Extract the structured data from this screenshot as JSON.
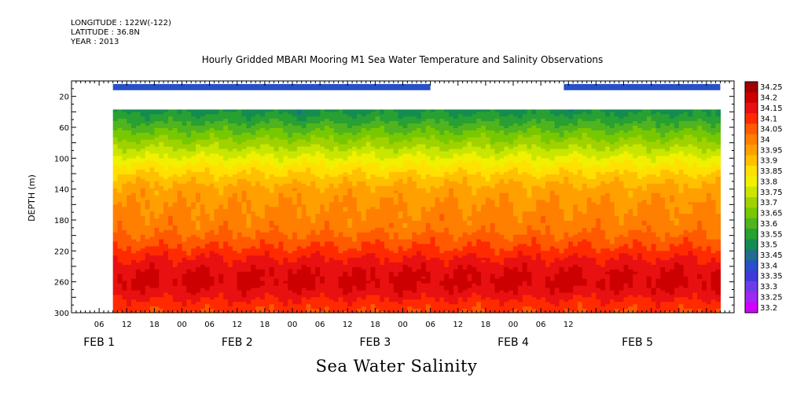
{
  "meta": {
    "longitude": "LONGITUDE : 122W(-122)",
    "latitude": "LATITUDE : 36.8N",
    "year": "YEAR : 2013"
  },
  "caption": "Sea Water Salinity",
  "chart_data": {
    "type": "heatmap",
    "title": "Hourly Gridded MBARI Mooring M1 Sea Water Temperature and Salinity Observations",
    "xlabel": "",
    "ylabel": "DEPTH (m)",
    "y_inverted": true,
    "ylim": [
      300,
      0
    ],
    "y_ticks": [
      20,
      60,
      100,
      140,
      180,
      220,
      260,
      300
    ],
    "x_range_hours": [
      0,
      144
    ],
    "x_hour_ticks": [
      {
        "h": 6,
        "label": "06"
      },
      {
        "h": 12,
        "label": "12"
      },
      {
        "h": 18,
        "label": "18"
      },
      {
        "h": 24,
        "label": "00"
      },
      {
        "h": 30,
        "label": "06"
      },
      {
        "h": 36,
        "label": "12"
      },
      {
        "h": 42,
        "label": "18"
      },
      {
        "h": 48,
        "label": "00"
      },
      {
        "h": 54,
        "label": "06"
      },
      {
        "h": 60,
        "label": "12"
      },
      {
        "h": 66,
        "label": "18"
      },
      {
        "h": 72,
        "label": "00"
      },
      {
        "h": 78,
        "label": "06"
      },
      {
        "h": 84,
        "label": "12"
      },
      {
        "h": 90,
        "label": "18"
      },
      {
        "h": 96,
        "label": "00"
      },
      {
        "h": 102,
        "label": "06"
      },
      {
        "h": 108,
        "label": "12"
      }
    ],
    "x_day_labels": [
      {
        "h": 6,
        "label": "FEB  1"
      },
      {
        "h": 36,
        "label": "FEB  2"
      },
      {
        "h": 66,
        "label": "FEB  3"
      },
      {
        "h": 96,
        "label": "FEB  4"
      },
      {
        "h": 123,
        "label": "FEB  5"
      }
    ],
    "data_start_hour": 9,
    "data_end_hour": 141,
    "top_depth": 37,
    "surface_band": {
      "depth_top": 4,
      "depth_bottom": 12,
      "value": 33.4,
      "segments": [
        [
          9,
          78
        ],
        [
          107,
          141
        ]
      ]
    },
    "depth_profile": [
      {
        "depth": 37,
        "value": 33.53
      },
      {
        "depth": 50,
        "value": 33.58
      },
      {
        "depth": 65,
        "value": 33.65
      },
      {
        "depth": 80,
        "value": 33.72
      },
      {
        "depth": 95,
        "value": 33.79
      },
      {
        "depth": 110,
        "value": 33.86
      },
      {
        "depth": 125,
        "value": 33.92
      },
      {
        "depth": 140,
        "value": 33.97
      },
      {
        "depth": 160,
        "value": 34.0
      },
      {
        "depth": 190,
        "value": 34.03
      },
      {
        "depth": 215,
        "value": 34.1
      },
      {
        "depth": 232,
        "value": 34.16
      },
      {
        "depth": 248,
        "value": 34.2
      },
      {
        "depth": 262,
        "value": 34.21
      },
      {
        "depth": 275,
        "value": 34.18
      },
      {
        "depth": 288,
        "value": 34.13
      },
      {
        "depth": 300,
        "value": 34.1
      }
    ],
    "colorbar": {
      "levels": [
        34.25,
        34.2,
        34.15,
        34.1,
        34.05,
        34,
        33.95,
        33.9,
        33.85,
        33.8,
        33.75,
        33.7,
        33.65,
        33.6,
        33.55,
        33.5,
        33.45,
        33.4,
        33.35,
        33.3,
        33.25,
        33.2
      ],
      "labels": [
        "34.25",
        "34.2",
        "34.15",
        "34.1",
        "34.05",
        "34",
        "33.95",
        "33.9",
        "33.85",
        "33.8",
        "33.75",
        "33.7",
        "33.65",
        "33.6",
        "33.55",
        "33.5",
        "33.45",
        "33.4",
        "33.35",
        "33.3",
        "33.25",
        "33.2"
      ],
      "colors": [
        "#a00000",
        "#cc0000",
        "#e81010",
        "#ff2a00",
        "#ff5a00",
        "#ff7f00",
        "#ffa000",
        "#ffc000",
        "#ffe000",
        "#f0f000",
        "#c8e600",
        "#a0d200",
        "#78c800",
        "#50b41e",
        "#28a032",
        "#148c50",
        "#1e6e8c",
        "#2850c8",
        "#3c3cdc",
        "#6e3ce6",
        "#a028f0",
        "#d200ff"
      ]
    }
  }
}
